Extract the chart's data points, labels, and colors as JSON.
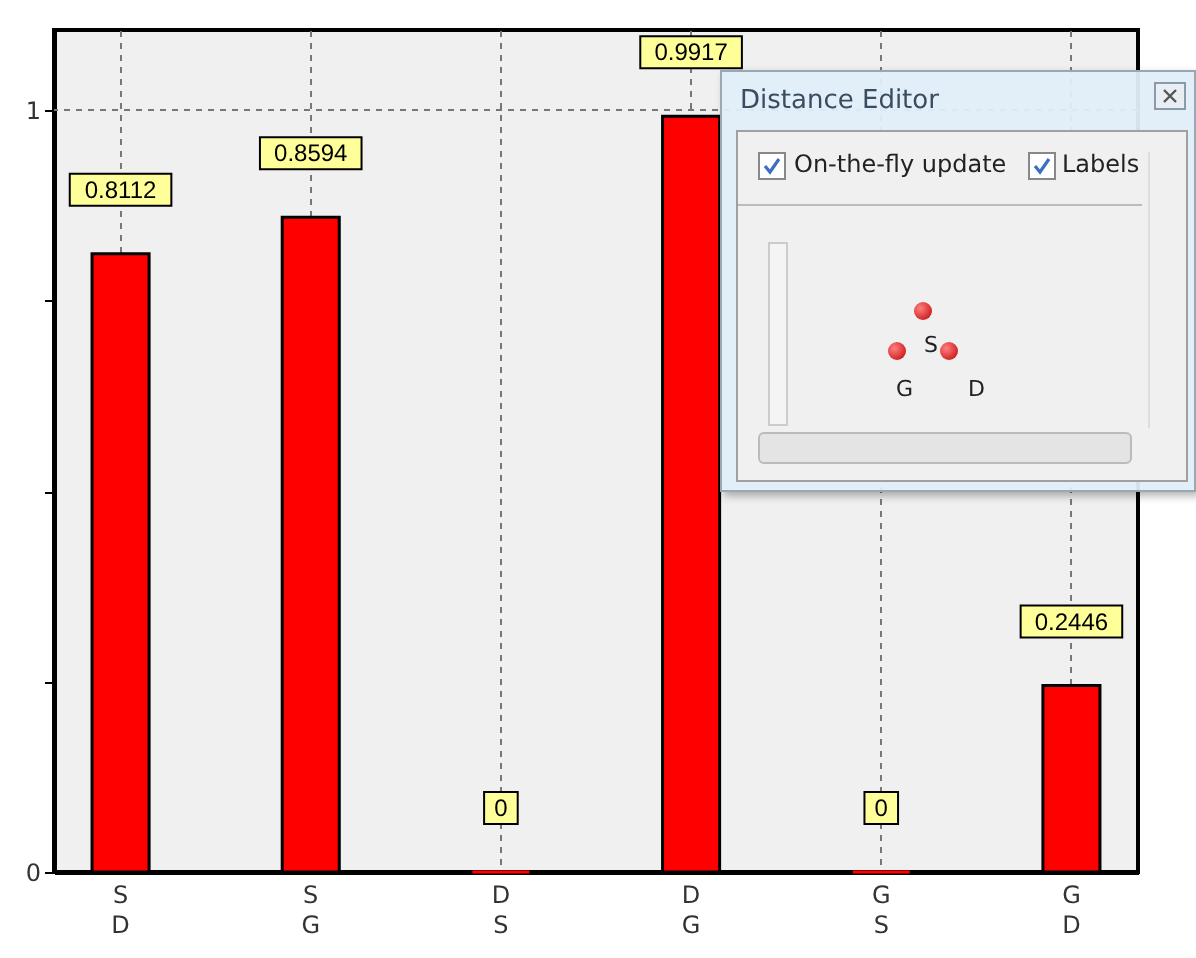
{
  "chart_data": {
    "type": "bar",
    "categories": [
      "S\nD",
      "S\nG",
      "D\nS",
      "D\nG",
      "G\nS",
      "G\nD"
    ],
    "values": [
      0.8112,
      0.8594,
      0,
      0.9917,
      0,
      0.2446
    ],
    "color": "#ff0000",
    "ylim": [
      0,
      1.105
    ],
    "yticks": [
      0,
      {
        "value": 0.25,
        "label": null
      },
      {
        "value": 0.5,
        "label": null
      },
      {
        "value": 0.75,
        "label": null
      },
      1
    ],
    "grid": true,
    "data_labels": true,
    "annotations": [
      "Distance Editor",
      "On-the-fly update",
      "Labels",
      "S",
      "G",
      "D"
    ]
  }
}
